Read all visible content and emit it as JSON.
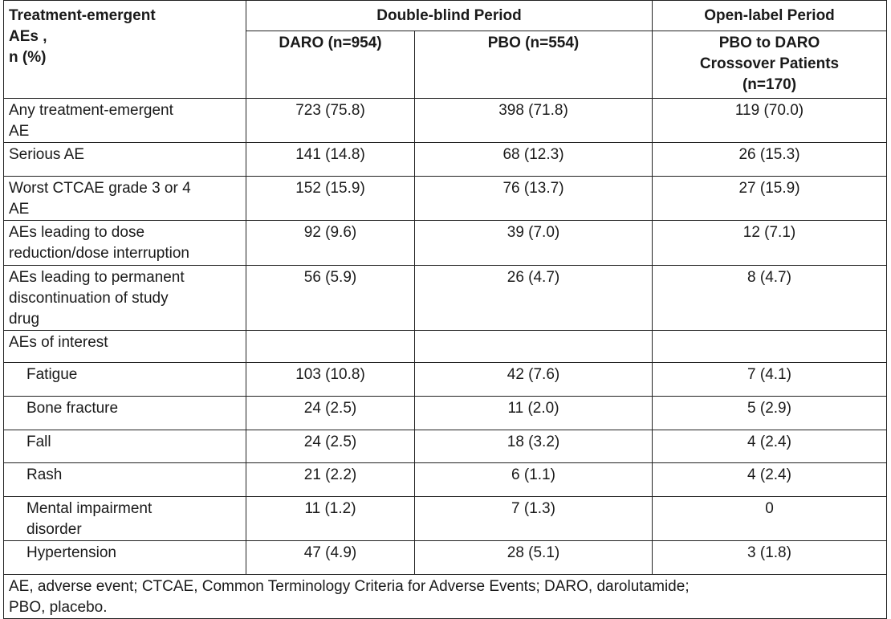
{
  "header": {
    "row_label": [
      "Treatment-emergent",
      "AEs ,",
      "n (%)"
    ],
    "double_blind": "Double-blind Period",
    "open_label": "Open-label Period",
    "daro": "DARO (n=954)",
    "pbo": "PBO (n=554)",
    "crossover": [
      "PBO to DARO",
      "Crossover Patients",
      "(n=170)"
    ]
  },
  "rows": [
    {
      "label": [
        "Any treatment-emergent",
        "AE"
      ],
      "daro": "723 (75.8)",
      "pbo": "398 (71.8)",
      "cross": "119 (70.0)"
    },
    {
      "label": [
        "Serious AE"
      ],
      "daro": "141 (14.8)",
      "pbo": "68 (12.3)",
      "cross": "26 (15.3)"
    },
    {
      "label": [
        "Worst CTCAE grade 3 or 4",
        "AE"
      ],
      "daro": "152 (15.9)",
      "pbo": "76 (13.7)",
      "cross": "27 (15.9)"
    },
    {
      "label": [
        "AEs leading to dose",
        "reduction/dose interruption"
      ],
      "daro": "92 (9.6)",
      "pbo": "39 (7.0)",
      "cross": "12 (7.1)"
    },
    {
      "label": [
        "AEs leading to permanent",
        "discontinuation of study",
        "drug"
      ],
      "daro": "56 (5.9)",
      "pbo": "26 (4.7)",
      "cross": "8 (4.7)"
    },
    {
      "label": [
        "AEs of interest"
      ],
      "daro": "",
      "pbo": "",
      "cross": ""
    },
    {
      "label": [
        "Fatigue"
      ],
      "daro": "103 (10.8)",
      "pbo": "42 (7.6)",
      "cross": "7 (4.1)",
      "indent": true
    },
    {
      "label": [
        "Bone fracture"
      ],
      "daro": "24 (2.5)",
      "pbo": "11 (2.0)",
      "cross": "5 (2.9)",
      "indent": true
    },
    {
      "label": [
        "Fall"
      ],
      "daro": "24 (2.5)",
      "pbo": "18 (3.2)",
      "cross": "4 (2.4)",
      "indent": true
    },
    {
      "label": [
        "Rash"
      ],
      "daro": "21 (2.2)",
      "pbo": "6 (1.1)",
      "cross": "4 (2.4)",
      "indent": true
    },
    {
      "label": [
        "Mental impairment",
        "disorder"
      ],
      "daro": "11 (1.2)",
      "pbo": "7 (1.3)",
      "cross": "0",
      "indent": true
    },
    {
      "label": [
        "Hypertension"
      ],
      "daro": "47 (4.9)",
      "pbo": "28 (5.1)",
      "cross": "3 (1.8)",
      "indent": true
    }
  ],
  "footnote": [
    "AE, adverse event; CTCAE, Common Terminology Criteria for Adverse Events; DARO, darolutamide;",
    "PBO, placebo."
  ]
}
